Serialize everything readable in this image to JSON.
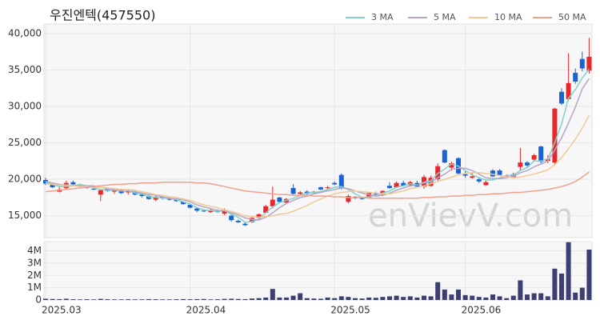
{
  "chart_data": {
    "type": "candlestick",
    "title": "우진엔텍(457550)",
    "watermark": "enVievV.com",
    "categories": [
      "2025.03",
      null,
      null,
      null,
      null,
      null,
      null,
      null,
      null,
      null,
      null,
      null,
      null,
      null,
      null,
      null,
      null,
      null,
      null,
      null,
      null,
      "2025.04",
      null,
      null,
      null,
      null,
      null,
      null,
      null,
      null,
      null,
      null,
      null,
      null,
      null,
      null,
      null,
      null,
      null,
      null,
      null,
      null,
      "2025.05",
      null,
      null,
      null,
      null,
      null,
      null,
      null,
      null,
      null,
      null,
      null,
      null,
      null,
      null,
      null,
      null,
      null,
      null,
      "2025.06",
      null,
      null,
      null,
      null,
      null,
      null,
      null,
      null,
      null,
      null,
      null,
      null,
      null,
      null,
      null,
      null,
      null,
      null
    ],
    "open": [
      19900,
      19300,
      18300,
      18800,
      19600,
      19200,
      19000,
      18700,
      17900,
      18700,
      18300,
      18500,
      18200,
      18300,
      17900,
      17700,
      17200,
      17600,
      17300,
      17200,
      16900,
      16500,
      16000,
      15700,
      15500,
      15700,
      15300,
      15000,
      14300,
      13900,
      14100,
      14700,
      15400,
      16300,
      17500,
      16800,
      18800,
      18000,
      18300,
      18100,
      18900,
      18800,
      19500,
      20600,
      16900,
      17600,
      17400,
      17500,
      18000,
      17900,
      19100,
      18900,
      19500,
      19200,
      19500,
      19000,
      19100,
      20000,
      24000,
      21600,
      22900,
      20700,
      20200,
      20000,
      19200,
      21200,
      21200,
      20400,
      20300,
      21700,
      22300,
      22700,
      24500,
      22500,
      22300,
      32000,
      31000,
      34600,
      36500,
      34900
    ],
    "high": [
      20200,
      19500,
      18900,
      19800,
      19800,
      19400,
      19200,
      18900,
      18500,
      18900,
      18700,
      18700,
      18600,
      18400,
      18100,
      17900,
      17800,
      17700,
      17500,
      17400,
      17000,
      16600,
      16200,
      15900,
      15900,
      15900,
      16000,
      15300,
      14500,
      14100,
      14800,
      15300,
      16500,
      19000,
      17600,
      17400,
      19300,
      18400,
      18500,
      18400,
      19000,
      19100,
      19700,
      20800,
      17900,
      17700,
      17600,
      18300,
      18300,
      18500,
      19600,
      19700,
      19800,
      19800,
      19800,
      20600,
      20500,
      22200,
      24100,
      22400,
      23000,
      21200,
      20900,
      20300,
      19800,
      21400,
      21400,
      20700,
      20900,
      24300,
      22500,
      23500,
      24600,
      23300,
      29800,
      32500,
      37300,
      35200,
      37500,
      39400
    ],
    "low": [
      19200,
      18800,
      18200,
      18600,
      19100,
      18900,
      18700,
      18500,
      17000,
      18300,
      18000,
      18000,
      17900,
      17800,
      17500,
      17200,
      17000,
      17200,
      17100,
      16900,
      16500,
      16000,
      15500,
      15500,
      15400,
      15400,
      15100,
      14200,
      14000,
      13600,
      14000,
      14600,
      15300,
      16000,
      16800,
      16600,
      17900,
      17900,
      17900,
      18000,
      18500,
      18600,
      19200,
      18600,
      16700,
      17300,
      17200,
      17400,
      17700,
      17700,
      18700,
      18800,
      19000,
      19000,
      18900,
      18700,
      19000,
      19800,
      22200,
      21200,
      20600,
      20200,
      20100,
      19500,
      19100,
      20300,
      20500,
      20200,
      20100,
      21100,
      21700,
      22500,
      22200,
      22200,
      22000,
      30200,
      30800,
      33100,
      34800,
      34500
    ],
    "close": [
      19400,
      18900,
      18600,
      19500,
      19300,
      19100,
      18800,
      18600,
      18500,
      18400,
      18600,
      18100,
      18400,
      17900,
      17700,
      17300,
      17600,
      17400,
      17200,
      17000,
      16600,
      16100,
      15700,
      15600,
      15800,
      15500,
      15800,
      14400,
      14100,
      13700,
      14700,
      15200,
      16300,
      17200,
      16900,
      17300,
      18000,
      18200,
      18000,
      18300,
      18600,
      18900,
      19300,
      18800,
      17700,
      17400,
      17300,
      18100,
      17900,
      18400,
      18800,
      19500,
      19100,
      19600,
      19000,
      20300,
      20200,
      21800,
      22300,
      22200,
      20800,
      20500,
      20400,
      19700,
      19600,
      20400,
      20600,
      20500,
      20700,
      22300,
      21900,
      23300,
      22400,
      22800,
      29700,
      30400,
      33200,
      33400,
      35200,
      36800
    ],
    "up_color": "#e8262b",
    "down_color": "#1b62d4",
    "ylim": [
      12000,
      41300
    ],
    "yticks": [
      {
        "value": 15000,
        "label": "15,000"
      },
      {
        "value": 20000,
        "label": "20,000"
      },
      {
        "value": 25000,
        "label": "25,000"
      },
      {
        "value": 30000,
        "label": "30,000"
      },
      {
        "value": 35000,
        "label": "35,000"
      },
      {
        "value": 40000,
        "label": "40,000"
      }
    ],
    "grid": true,
    "series": [
      {
        "name": "3 MA",
        "color": "#7ed3c8",
        "values": [
          19600,
          19300,
          19000,
          19000,
          19100,
          19300,
          19100,
          18800,
          18600,
          18500,
          18500,
          18400,
          18400,
          18100,
          18000,
          17600,
          17500,
          17400,
          17400,
          17200,
          16900,
          16600,
          16100,
          15800,
          15700,
          15600,
          15700,
          15200,
          14800,
          14100,
          14200,
          14500,
          15400,
          16200,
          16800,
          17100,
          17400,
          17800,
          18100,
          18200,
          18300,
          18600,
          18900,
          19000,
          18600,
          18000,
          17500,
          17600,
          17800,
          18100,
          18400,
          18900,
          19100,
          19400,
          19200,
          19600,
          19800,
          20800,
          21400,
          22100,
          21800,
          21200,
          20600,
          20200,
          19900,
          19900,
          20200,
          20500,
          20600,
          21200,
          21600,
          22500,
          22500,
          22800,
          25000,
          27600,
          31100,
          32300,
          33900,
          35100
        ]
      },
      {
        "name": "5 MA",
        "color": "#b4a5c8",
        "values": [
          19700,
          19500,
          19300,
          19200,
          19100,
          19100,
          19100,
          19100,
          18900,
          18700,
          18600,
          18400,
          18400,
          18300,
          18100,
          17900,
          17800,
          17600,
          17400,
          17300,
          17200,
          16900,
          16500,
          16200,
          16000,
          15700,
          15700,
          15400,
          15100,
          14700,
          14500,
          14400,
          14800,
          15400,
          16100,
          16700,
          17100,
          17500,
          17700,
          18000,
          18200,
          18400,
          18600,
          18800,
          18700,
          18400,
          18100,
          17900,
          17700,
          17800,
          18100,
          18500,
          18800,
          19100,
          19200,
          19500,
          19600,
          20200,
          20700,
          21400,
          21500,
          21500,
          21200,
          20700,
          20200,
          20100,
          20100,
          20200,
          20400,
          20900,
          21200,
          21700,
          22100,
          22500,
          24000,
          25700,
          27700,
          29900,
          32400,
          33800
        ]
      },
      {
        "name": "10 MA",
        "color": "#f2c995",
        "values": [
          19400,
          19300,
          19200,
          19200,
          19100,
          19000,
          19000,
          18900,
          18900,
          18800,
          18700,
          18600,
          18600,
          18500,
          18300,
          18100,
          17900,
          17800,
          17600,
          17500,
          17300,
          17100,
          16800,
          16500,
          16300,
          16100,
          15800,
          15600,
          15300,
          15000,
          14900,
          14800,
          14900,
          15000,
          15200,
          15300,
          15600,
          16000,
          16400,
          16900,
          17300,
          17700,
          18000,
          18200,
          18300,
          18400,
          18300,
          18200,
          18100,
          18000,
          18000,
          18200,
          18400,
          18700,
          18900,
          19100,
          19400,
          19700,
          20000,
          20300,
          20600,
          20800,
          20900,
          20900,
          20800,
          20700,
          20500,
          20300,
          20200,
          20300,
          20500,
          20700,
          21000,
          21300,
          22000,
          23000,
          24200,
          25500,
          27000,
          28800
        ]
      },
      {
        "name": "50 MA",
        "color": "#f2a08b",
        "values": [
          18300,
          18400,
          18500,
          18600,
          18700,
          18800,
          18900,
          19000,
          19100,
          19200,
          19300,
          19300,
          19400,
          19400,
          19500,
          19500,
          19500,
          19600,
          19600,
          19600,
          19600,
          19600,
          19500,
          19500,
          19400,
          19200,
          19000,
          18800,
          18600,
          18400,
          18300,
          18200,
          18100,
          18000,
          17900,
          17900,
          17800,
          17800,
          17800,
          17700,
          17700,
          17700,
          17600,
          17600,
          17500,
          17500,
          17500,
          17400,
          17400,
          17400,
          17400,
          17400,
          17400,
          17400,
          17400,
          17500,
          17500,
          17600,
          17600,
          17700,
          17700,
          17800,
          17800,
          17900,
          17900,
          18000,
          18000,
          18100,
          18200,
          18200,
          18300,
          18400,
          18500,
          18600,
          18800,
          19000,
          19300,
          19700,
          20300,
          21000
        ]
      }
    ],
    "volume": {
      "color": "#3b3f74",
      "ylim": [
        0,
        4750000
      ],
      "yticks": [
        0,
        {
          "value": 1000000,
          "label": "1M"
        },
        {
          "value": 2000000,
          "label": "2M"
        },
        {
          "value": 3000000,
          "label": "3M"
        },
        {
          "value": 4000000,
          "label": "4M"
        }
      ],
      "values": [
        100000,
        80000,
        70000,
        100000,
        60000,
        50000,
        60000,
        50000,
        90000,
        60000,
        50000,
        50000,
        60000,
        50000,
        50000,
        70000,
        60000,
        50000,
        50000,
        60000,
        70000,
        60000,
        70000,
        80000,
        50000,
        60000,
        90000,
        100000,
        80000,
        70000,
        120000,
        150000,
        200000,
        900000,
        200000,
        200000,
        350000,
        550000,
        150000,
        120000,
        100000,
        200000,
        150000,
        300000,
        250000,
        150000,
        120000,
        200000,
        180000,
        250000,
        300000,
        350000,
        250000,
        300000,
        200000,
        350000,
        300000,
        1450000,
        850000,
        450000,
        850000,
        400000,
        350000,
        250000,
        200000,
        450000,
        300000,
        150000,
        350000,
        1600000,
        450000,
        550000,
        550000,
        300000,
        2550000,
        2150000,
        4700000,
        600000,
        1000000,
        4100000
      ]
    }
  }
}
